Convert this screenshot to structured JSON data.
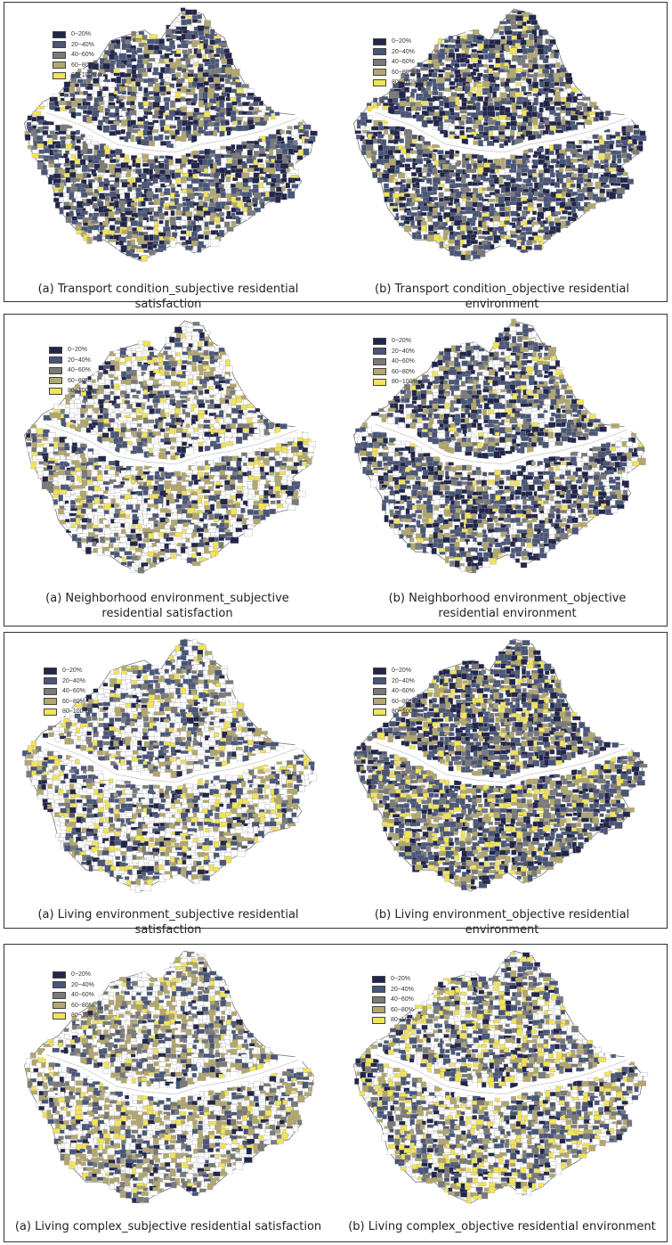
{
  "colors": {
    "q1": "#22264a",
    "q2": "#4a5678",
    "q3": "#7a7a78",
    "q4": "#b2a76e",
    "q5": "#f1e35a",
    "outline": "#888888",
    "river": "#ffffff",
    "border": "#333333"
  },
  "legend_labels": [
    "0~20%",
    "20~40%",
    "40~60%",
    "60~80%",
    "80~100%"
  ],
  "panels": [
    {
      "captions": {
        "left": "(a) Transport condition_subjective residential satisfaction",
        "right": "(b) Transport condition_objective residential environment"
      },
      "maps": [
        {
          "name": "transport-subjective",
          "distribution": [
            0.26,
            0.3,
            0.14,
            0.12,
            0.07
          ],
          "seed": 11
        },
        {
          "name": "transport-objective",
          "distribution": [
            0.28,
            0.33,
            0.12,
            0.12,
            0.07
          ],
          "seed": 23
        }
      ]
    },
    {
      "captions": {
        "left": "(a) Neighborhood environment_subjective residential satisfaction",
        "right": "(b) Neighborhood environment_objective residential environment"
      },
      "maps": [
        {
          "name": "neighborhood-subjective",
          "distribution": [
            0.1,
            0.18,
            0.1,
            0.17,
            0.12
          ],
          "seed": 37
        },
        {
          "name": "neighborhood-objective",
          "distribution": [
            0.22,
            0.32,
            0.1,
            0.14,
            0.05
          ],
          "seed": 41
        }
      ]
    },
    {
      "captions": {
        "left": "(a) Living environment_subjective residential satisfaction",
        "right": "(b) Living environment_objective residential environment"
      },
      "maps": [
        {
          "name": "living-env-subjective",
          "distribution": [
            0.08,
            0.2,
            0.1,
            0.14,
            0.12
          ],
          "seed": 53
        },
        {
          "name": "living-env-objective",
          "distribution": [
            0.24,
            0.3,
            0.16,
            0.18,
            0.12
          ],
          "seed": 67
        }
      ]
    },
    {
      "captions": {
        "left": "(a) Living complex_subjective residential satisfaction",
        "right": "(b) Living complex_objective residential environment"
      },
      "maps": [
        {
          "name": "living-complex-subjective",
          "distribution": [
            0.06,
            0.16,
            0.12,
            0.26,
            0.08
          ],
          "seed": 71
        },
        {
          "name": "living-complex-objective",
          "distribution": [
            0.1,
            0.22,
            0.14,
            0.14,
            0.18
          ],
          "seed": 89
        }
      ]
    }
  ]
}
